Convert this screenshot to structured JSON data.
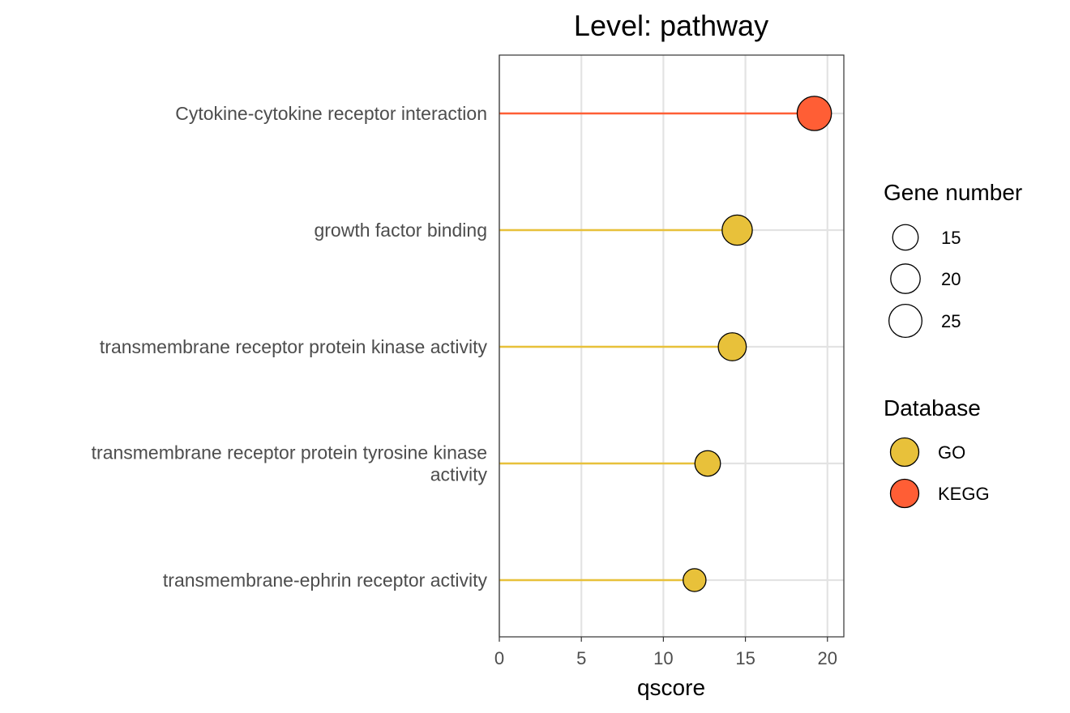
{
  "chart_data": {
    "type": "lollipop",
    "title": "Level: pathway",
    "xlabel": "qscore",
    "ylabel": "",
    "xlim": [
      0,
      21
    ],
    "xticks": [
      0,
      5,
      10,
      15,
      20
    ],
    "grid": true,
    "categories": [
      [
        "Cytokine-cytokine receptor interaction"
      ],
      [
        "growth factor binding"
      ],
      [
        "transmembrane receptor protein kinase activity"
      ],
      [
        "transmembrane receptor protein tyrosine kinase",
        "activity"
      ],
      [
        "transmembrane-ephrin receptor activity"
      ]
    ],
    "values": [
      19.2,
      14.5,
      14.2,
      12.7,
      11.9
    ],
    "gene_number": [
      27,
      21,
      18,
      15,
      12
    ],
    "database": [
      "KEGG",
      "GO",
      "GO",
      "GO",
      "GO"
    ],
    "colors": {
      "GO": "#E8C13A",
      "KEGG": "#FF5E35"
    },
    "legend": {
      "size_title": "Gene number",
      "size_entries": [
        15,
        20,
        25
      ],
      "color_title": "Database",
      "color_entries": [
        "GO",
        "KEGG"
      ],
      "position": "right"
    }
  }
}
